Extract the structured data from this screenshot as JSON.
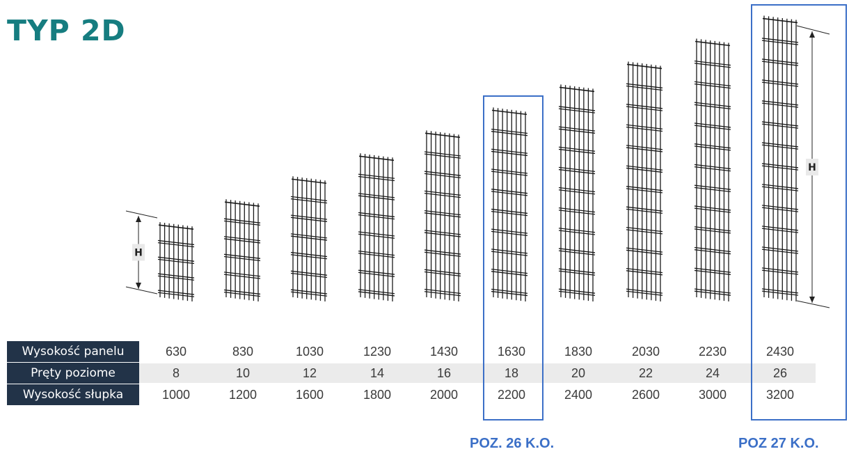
{
  "title": "TYP 2D",
  "dimension_label": "H",
  "table": {
    "rows": [
      {
        "label": "Wysokość panelu",
        "values": [
          "630",
          "830",
          "1030",
          "1230",
          "1430",
          "1630",
          "1830",
          "2030",
          "2230",
          "2430"
        ]
      },
      {
        "label": "Pręty poziome",
        "values": [
          "8",
          "10",
          "12",
          "14",
          "16",
          "18",
          "20",
          "22",
          "24",
          "26"
        ]
      },
      {
        "label": "Wysokość słupka",
        "values": [
          "1000",
          "1200",
          "1600",
          "1800",
          "2000",
          "2200",
          "2400",
          "2600",
          "3000",
          "3200"
        ]
      }
    ]
  },
  "highlights": [
    {
      "label": "POZ. 26 K.O.",
      "column": 6
    },
    {
      "label": "POZ 27 K.O.",
      "column": 10
    }
  ],
  "colors": {
    "title": "#167d80",
    "label_bg": "#223348",
    "highlight": "#3b6fc7",
    "panel_wire": "#1a1a1a"
  }
}
